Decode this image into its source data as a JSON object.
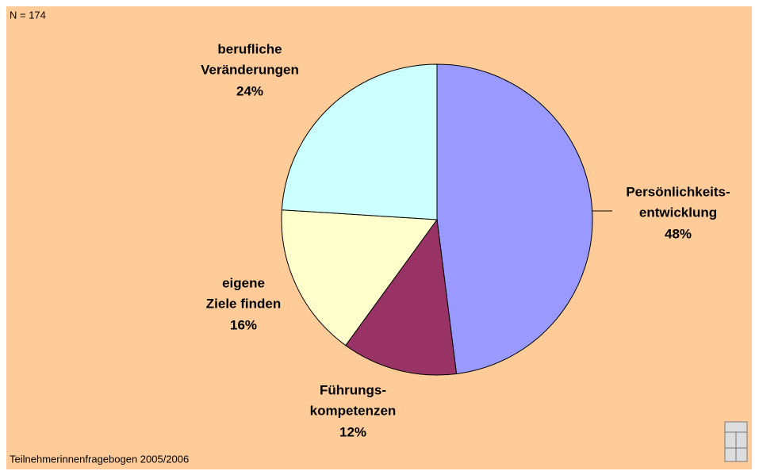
{
  "chart_data": {
    "type": "pie",
    "annotations": [
      "N = 174",
      "Teilnehmerinnenfragebogen 2005/2006"
    ],
    "categories": [
      [
        "Persönlichkeits-",
        "entwicklung"
      ],
      [
        "Führungs-",
        "kompetenzen"
      ],
      [
        "eigene",
        "Ziele finden"
      ],
      [
        "berufliche",
        "Veränderungen"
      ]
    ],
    "values": [
      48,
      12,
      16,
      24
    ],
    "value_labels": [
      "48%",
      "12%",
      "16%",
      "24%"
    ],
    "colors": [
      "#9999FF",
      "#993366",
      "#FFFFCC",
      "#CCFFFF"
    ]
  }
}
